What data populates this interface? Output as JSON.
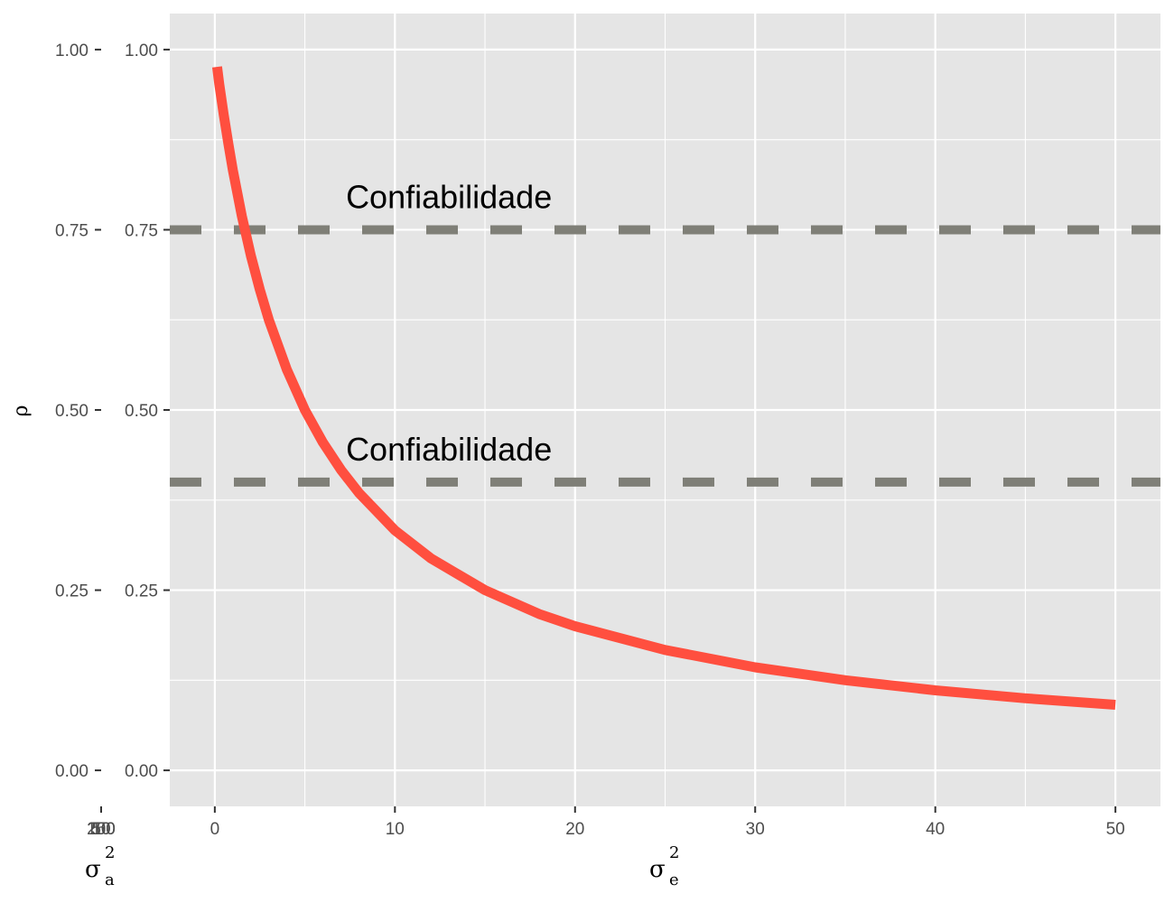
{
  "chart_data": {
    "type": "line",
    "xlabel": {
      "base": "σ",
      "sup": "2",
      "sub": "e"
    },
    "ylabel": "ρ",
    "secondary_xlabel": {
      "base": "σ",
      "sup": "2",
      "sub": "a"
    },
    "secondary_x_tick_labels": [
      "250",
      "100",
      "50",
      "10"
    ],
    "x_ticks": [
      0,
      10,
      20,
      30,
      40,
      50
    ],
    "x_tick_labels": [
      "0",
      "10",
      "20",
      "30",
      "40",
      "50"
    ],
    "y_ticks": [
      0,
      0.25,
      0.5,
      0.75,
      1.0
    ],
    "y_tick_labels": [
      "0.00",
      "0.25",
      "0.50",
      "0.75",
      "1.00"
    ],
    "xlim": [
      -2.5,
      52.5
    ],
    "ylim": [
      -0.05,
      1.05
    ],
    "grid": true,
    "series": [
      {
        "color": "#ff4f3f",
        "formula": "5 / (5 + x)",
        "x": [
          0.125,
          0.25,
          0.5,
          0.75,
          1,
          1.5,
          2,
          2.5,
          3,
          4,
          5,
          6,
          7,
          8,
          10,
          12,
          15,
          18,
          20,
          25,
          30,
          35,
          40,
          45,
          50
        ],
        "y": [
          0.976,
          0.952,
          0.909,
          0.87,
          0.833,
          0.769,
          0.714,
          0.667,
          0.625,
          0.556,
          0.5,
          0.455,
          0.417,
          0.385,
          0.333,
          0.294,
          0.25,
          0.217,
          0.2,
          0.167,
          0.143,
          0.125,
          0.111,
          0.1,
          0.091
        ]
      }
    ],
    "reference_lines": [
      {
        "y": 0.75,
        "style": "dashed",
        "color": "#7f7f77"
      },
      {
        "y": 0.4,
        "style": "dashed",
        "color": "#7f7f77"
      }
    ],
    "annotations": [
      {
        "text": "Confiabilidade",
        "x": 13,
        "y": 0.795
      },
      {
        "text": "Confiabilidade",
        "x": 13,
        "y": 0.445
      }
    ],
    "colors": {
      "panel": "#e5e5e5",
      "grid": "#ffffff",
      "line": "#ff4f3f",
      "ref_line": "#7f7f77"
    }
  }
}
